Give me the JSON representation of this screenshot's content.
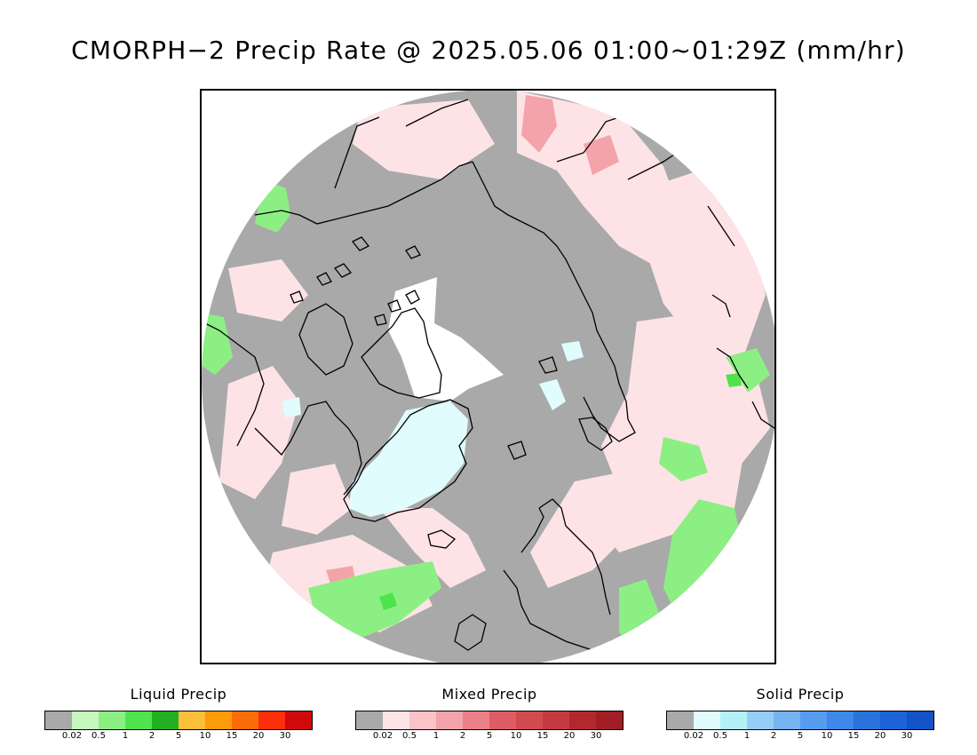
{
  "title": "CMORPH−2 Precip Rate @ 2025.05.06 01:00~01:29Z (mm/hr)",
  "map": {
    "projection": "north-polar-stereographic",
    "colors": {
      "no_precip": "#a9a9a9",
      "no_data": "#ffffff",
      "coastline": "#000000"
    }
  },
  "legends": [
    {
      "title": "Liquid Precip",
      "colors": [
        "#a9a9a9",
        "#c6f7bf",
        "#8cef84",
        "#4fe34e",
        "#22b022",
        "#fcbf3a",
        "#fc9c08",
        "#fc6d0a",
        "#fc2f0a",
        "#d00a0a"
      ],
      "ticks": [
        "0.02",
        "0.5",
        "1",
        "2",
        "5",
        "10",
        "15",
        "20",
        "30"
      ]
    },
    {
      "title": "Mixed Precip",
      "colors": [
        "#a9a9a9",
        "#fde3e6",
        "#fbc2c8",
        "#f4a3ab",
        "#eb8088",
        "#de5d64",
        "#d24a50",
        "#c43a40",
        "#b3282e",
        "#a01e24"
      ],
      "ticks": [
        "0.02",
        "0.5",
        "1",
        "2",
        "5",
        "10",
        "15",
        "20",
        "30"
      ]
    },
    {
      "title": "Solid Precip",
      "colors": [
        "#a9a9a9",
        "#e0fcfd",
        "#b3f0f8",
        "#94cdf7",
        "#75b3f1",
        "#569ded",
        "#3d88e8",
        "#2a73dd",
        "#1d62d6",
        "#1452c7"
      ],
      "ticks": [
        "0.02",
        "0.5",
        "1",
        "2",
        "5",
        "10",
        "15",
        "20",
        "30"
      ]
    }
  ]
}
